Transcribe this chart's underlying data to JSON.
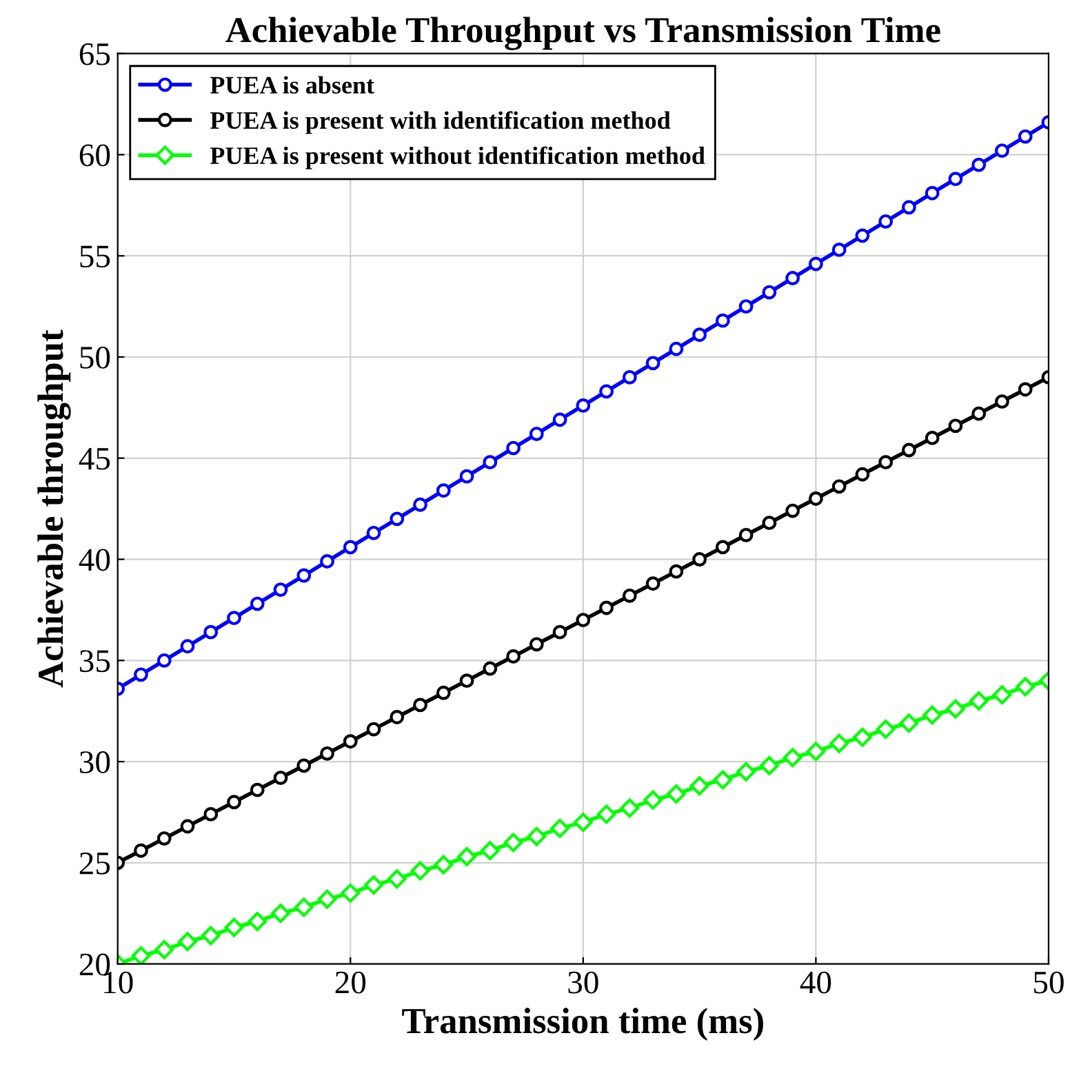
{
  "chart_data": {
    "type": "line",
    "title": "Achievable Throughput vs Transmission Time",
    "xlabel": "Transmission time (ms)",
    "ylabel": "Achievable throughput",
    "x": [
      10,
      11,
      12,
      13,
      14,
      15,
      16,
      17,
      18,
      19,
      20,
      21,
      22,
      23,
      24,
      25,
      26,
      27,
      28,
      29,
      30,
      31,
      32,
      33,
      34,
      35,
      36,
      37,
      38,
      39,
      40,
      41,
      42,
      43,
      44,
      45,
      46,
      47,
      48,
      49,
      50
    ],
    "series": [
      {
        "name": "PUEA is absent",
        "color": "#0000ff",
        "marker": "circle",
        "values": [
          33.6,
          34.3,
          35.0,
          35.7,
          36.4,
          37.1,
          37.8,
          38.5,
          39.2,
          39.9,
          40.6,
          41.3,
          42.0,
          42.7,
          43.4,
          44.1,
          44.8,
          45.5,
          46.2,
          46.9,
          47.6,
          48.3,
          49.0,
          49.7,
          50.4,
          51.1,
          51.8,
          52.5,
          53.2,
          53.9,
          54.6,
          55.3,
          56.0,
          56.7,
          57.4,
          58.1,
          58.8,
          59.5,
          60.2,
          60.9,
          61.6
        ]
      },
      {
        "name": "PUEA is present with identification method",
        "color": "#000000",
        "marker": "circle",
        "values": [
          25.0,
          25.6,
          26.2,
          26.8,
          27.4,
          28.0,
          28.6,
          29.2,
          29.8,
          30.4,
          31.0,
          31.6,
          32.2,
          32.8,
          33.4,
          34.0,
          34.6,
          35.2,
          35.8,
          36.4,
          37.0,
          37.6,
          38.2,
          38.8,
          39.4,
          40.0,
          40.6,
          41.2,
          41.8,
          42.4,
          43.0,
          43.6,
          44.2,
          44.8,
          45.4,
          46.0,
          46.6,
          47.2,
          47.8,
          48.4,
          49.0
        ]
      },
      {
        "name": "PUEA is present without identification method",
        "color": "#00ff00",
        "marker": "diamond",
        "values": [
          20.0,
          20.4,
          20.7,
          21.1,
          21.4,
          21.8,
          22.1,
          22.5,
          22.8,
          23.2,
          23.5,
          23.9,
          24.2,
          24.6,
          24.9,
          25.3,
          25.6,
          26.0,
          26.3,
          26.7,
          27.0,
          27.4,
          27.7,
          28.1,
          28.4,
          28.8,
          29.1,
          29.5,
          29.8,
          30.2,
          30.5,
          30.9,
          31.2,
          31.6,
          31.9,
          32.3,
          32.6,
          33.0,
          33.3,
          33.7,
          34.0
        ]
      }
    ],
    "xlim": [
      10,
      50
    ],
    "ylim": [
      20,
      65
    ],
    "xticks": [
      10,
      20,
      30,
      40,
      50
    ],
    "yticks": [
      20,
      25,
      30,
      35,
      40,
      45,
      50,
      55,
      60,
      65
    ],
    "grid": true,
    "legend": "top left",
    "line_style": "solid"
  }
}
